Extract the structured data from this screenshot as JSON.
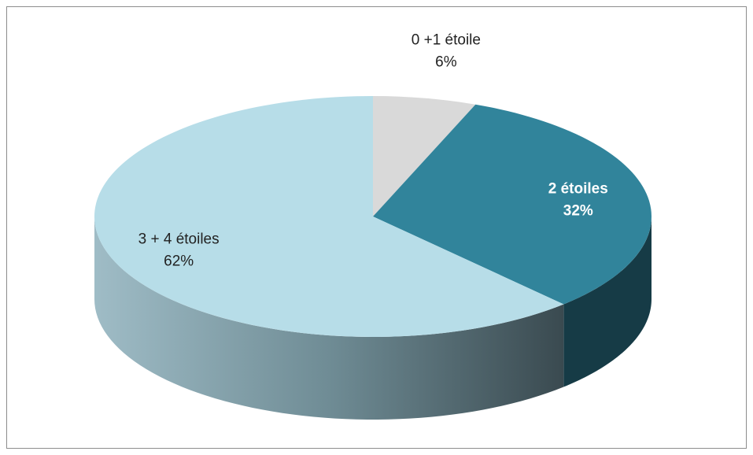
{
  "chart_data": {
    "type": "pie",
    "categories": [
      "0 +1 étoile",
      "2 étoiles",
      "3 + 4 étoiles"
    ],
    "values": [
      6,
      32,
      62
    ],
    "value_labels": [
      "6%",
      "32%",
      "62%"
    ],
    "colors": [
      "#d9d9d9",
      "#31849b",
      "#b7dde8"
    ]
  }
}
